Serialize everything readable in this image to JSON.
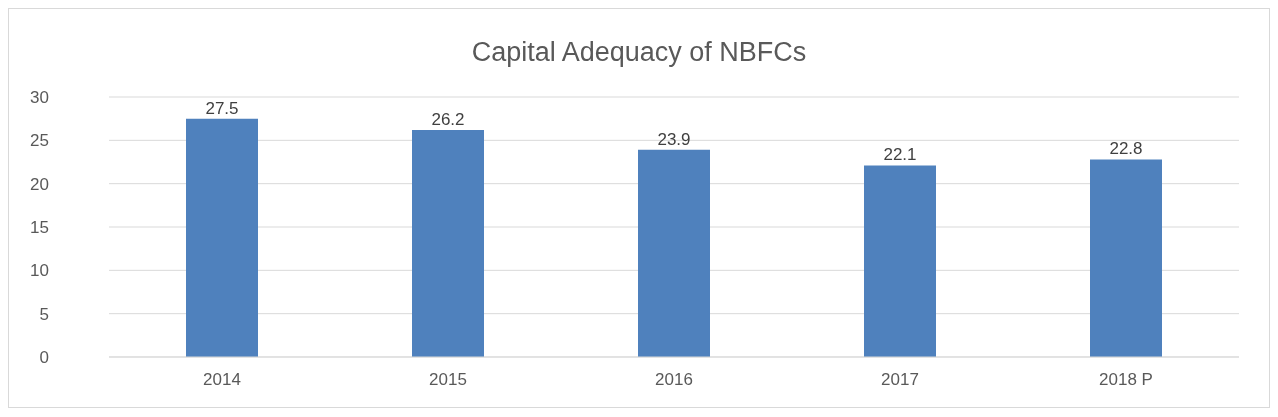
{
  "chart_data": {
    "type": "bar",
    "title": "Capital Adequacy of NBFCs",
    "categories": [
      "2014",
      "2015",
      "2016",
      "2017",
      "2018 P"
    ],
    "values": [
      27.5,
      26.2,
      23.9,
      22.1,
      22.8
    ],
    "color": "#4f81bd",
    "ylim": [
      0,
      30
    ],
    "yticks": [
      0,
      5,
      10,
      15,
      20,
      25,
      30
    ],
    "grid": "y",
    "data_labels": true
  }
}
